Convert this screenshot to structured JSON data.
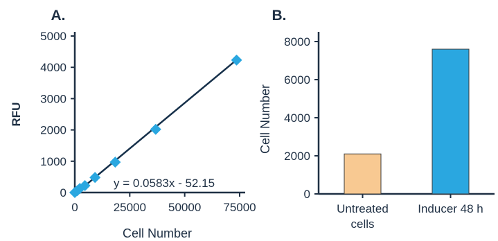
{
  "colors": {
    "axis": "#1f3044",
    "marker": "#2aa7e0",
    "trendline": "#16304a",
    "bar_untreated": "#f8c992",
    "bar_inducer": "#2aa7e0",
    "bar_stroke": "#3a3a3a"
  },
  "chart_data": [
    {
      "type": "scatter",
      "panel_label": "A.",
      "xlabel": "Cell Number",
      "ylabel": "RFU",
      "xlim": [
        0,
        75000
      ],
      "ylim": [
        0,
        5000
      ],
      "xticks": [
        0,
        25000,
        50000,
        75000
      ],
      "yticks": [
        0,
        1000,
        2000,
        3000,
        4000,
        5000
      ],
      "x": [
        0,
        1150,
        2300,
        4600,
        9200,
        18400,
        36800,
        73600
      ],
      "y": [
        0,
        60,
        130,
        220,
        480,
        970,
        2020,
        4230
      ],
      "trendline": {
        "slope": 0.0583,
        "intercept": -52.15,
        "x_range": [
          0,
          73600
        ]
      },
      "equation": "y = 0.0583x - 52.15",
      "grid": false,
      "marker": "diamond"
    },
    {
      "type": "bar",
      "panel_label": "B.",
      "categories": [
        "Untreated cells",
        "Inducer 48 h"
      ],
      "category_lines": [
        [
          "Untreated",
          "cells"
        ],
        [
          "Inducer 48 h"
        ]
      ],
      "values": [
        2100,
        7600
      ],
      "ylabel": "Cell Number",
      "xlabel": "",
      "ylim": [
        0,
        8000
      ],
      "yticks": [
        0,
        2000,
        4000,
        6000,
        8000
      ],
      "grid": false
    }
  ]
}
